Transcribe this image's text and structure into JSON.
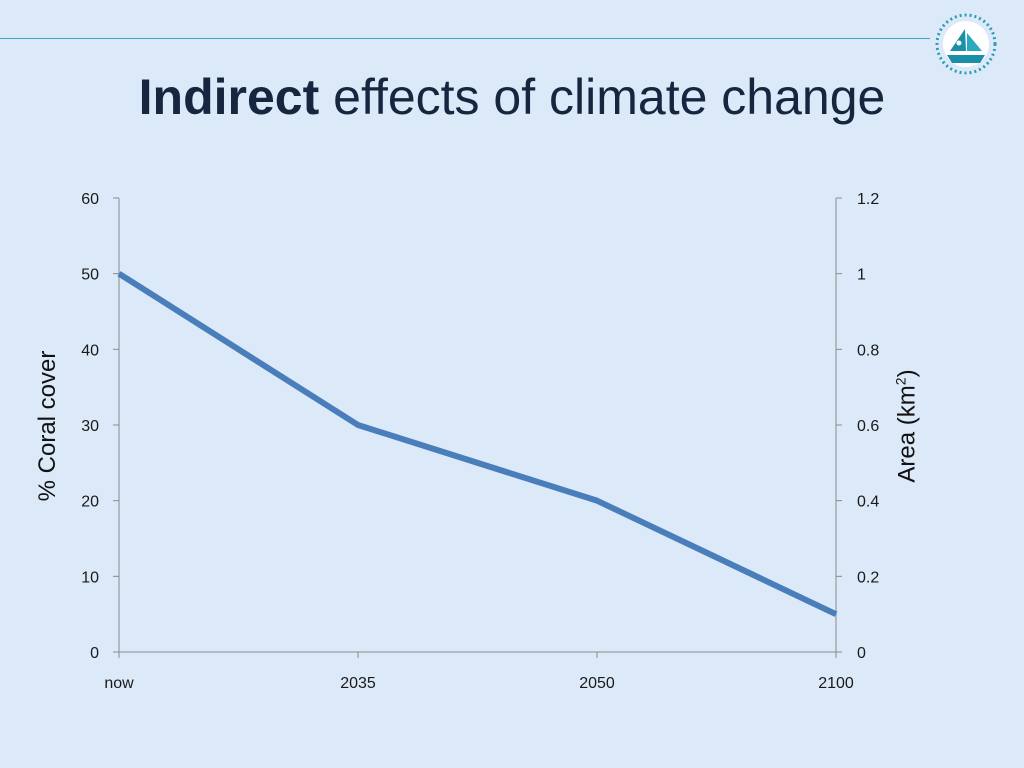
{
  "slide": {
    "title_bold": "Indirect",
    "title_rest": "effects of climate change",
    "logo_icon": "organization-logo-icon",
    "accent_color": "#3aa9b5",
    "background_color": "#dbe9f9"
  },
  "chart_data": {
    "type": "line",
    "title": "",
    "categories": [
      "now",
      "2035",
      "2050",
      "2100"
    ],
    "series": [
      {
        "name": "% Coral cover",
        "axis": "left",
        "values": [
          50,
          30,
          20,
          5
        ],
        "color": "#4a7ebb"
      }
    ],
    "ylabel": "% Coral cover",
    "ylim": [
      0,
      60
    ],
    "yticks": [
      "0",
      "10",
      "20",
      "30",
      "40",
      "50",
      "60"
    ],
    "y2label_main": "Area (km",
    "y2label_sup": "2",
    "y2label_end": ")",
    "y2lim": [
      0,
      1.2
    ],
    "y2ticks": [
      "0",
      "0.2",
      "0.4",
      "0.6",
      "0.8",
      "1",
      "1.2"
    ],
    "grid": false,
    "legend": "none"
  }
}
